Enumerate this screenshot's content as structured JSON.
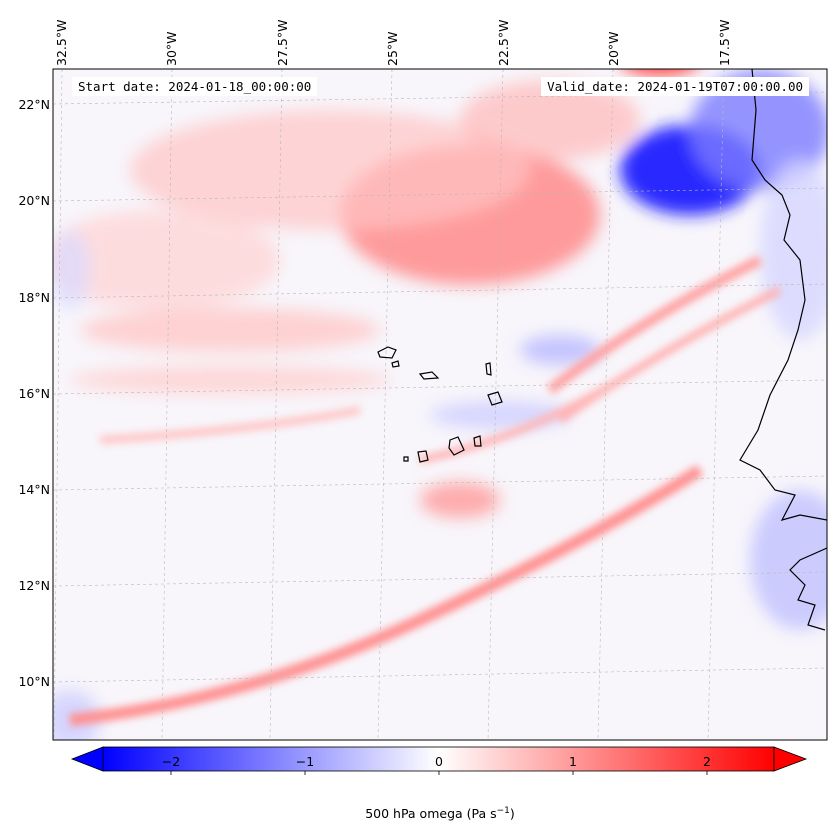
{
  "map": {
    "start_date": "Start date: 2024-01-18_00:00:00",
    "valid_date": "Valid_date: 2024-01-19T07:00:00.00",
    "lon_labels": [
      "32.5°W",
      "30°W",
      "27.5°W",
      "25°W",
      "22.5°W",
      "20°W",
      "17.5°W"
    ],
    "lat_labels": [
      "22°N",
      "20°N",
      "18°N",
      "16°N",
      "14°N",
      "12°N",
      "10°N"
    ],
    "colors": {
      "negative": "#0000ff",
      "neutral": "#ffffff",
      "positive": "#ff0000"
    }
  },
  "colorbar": {
    "ticks": [
      "−2",
      "−1",
      "0",
      "1",
      "2"
    ],
    "label": "500 hPa omega (Pa s",
    "label_sup": "−1",
    "label_end": ")"
  }
}
